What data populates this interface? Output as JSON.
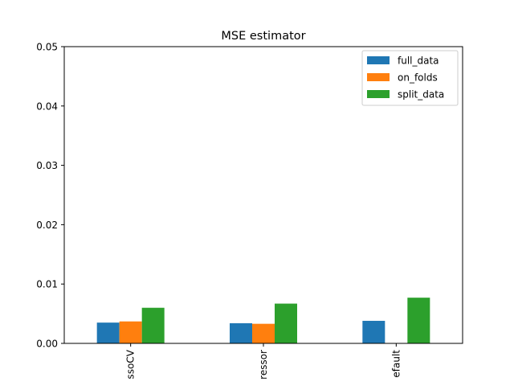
{
  "chart_data": {
    "type": "bar",
    "title": "MSE estimator",
    "xlabel": "",
    "ylabel": "",
    "categories": [
      "LassoCV",
      "Regressor",
      "Default"
    ],
    "category_labels_visible": [
      "ssoCV",
      "ressor",
      "efault"
    ],
    "ylim": [
      0,
      0.05
    ],
    "yticks": [
      0.0,
      0.01,
      0.02,
      0.03,
      0.04,
      0.05
    ],
    "ytick_labels": [
      "0.00",
      "0.01",
      "0.02",
      "0.03",
      "0.04",
      "0.05"
    ],
    "grid": false,
    "legend_position": "top-right",
    "series": [
      {
        "name": "full_data",
        "color": "#1f77b4",
        "values": [
          0.0035,
          0.0034,
          0.0038
        ]
      },
      {
        "name": "on_folds",
        "color": "#ff7f0e",
        "values": [
          0.0037,
          0.0033,
          0.0
        ]
      },
      {
        "name": "split_data",
        "color": "#2ca02c",
        "values": [
          0.006,
          0.0067,
          0.0077
        ]
      }
    ]
  }
}
